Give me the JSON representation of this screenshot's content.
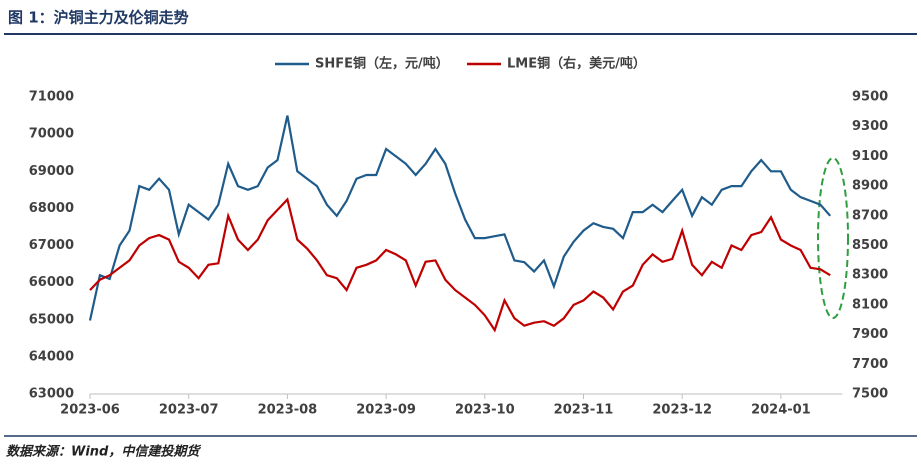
{
  "chart_data": {
    "type": "line",
    "title": "图 1：沪铜主力及伦铜走势",
    "source": "数据来源：Wind，中信建投期货",
    "categories": [
      "2023-06",
      null,
      null,
      null,
      null,
      null,
      null,
      null,
      null,
      null,
      "2023-07",
      null,
      null,
      null,
      null,
      null,
      null,
      null,
      null,
      null,
      "2023-08",
      null,
      null,
      null,
      null,
      null,
      null,
      null,
      null,
      null,
      "2023-09",
      null,
      null,
      null,
      null,
      null,
      null,
      null,
      null,
      null,
      "2023-10",
      null,
      null,
      null,
      null,
      null,
      null,
      null,
      null,
      null,
      "2023-11",
      null,
      null,
      null,
      null,
      null,
      null,
      null,
      null,
      null,
      "2023-12",
      null,
      null,
      null,
      null,
      null,
      null,
      null,
      null,
      null,
      "2024-01",
      null,
      null,
      null,
      null,
      null
    ],
    "series": [
      {
        "name": "SHFE铜（左，元/吨）",
        "color": "#1f5c8b",
        "axis": "y",
        "values": [
          64980,
          66200,
          66100,
          67000,
          67400,
          68600,
          68500,
          68800,
          68500,
          67300,
          68100,
          67900,
          67700,
          68100,
          69200,
          68600,
          68500,
          68600,
          69100,
          69300,
          70500,
          69000,
          68800,
          68600,
          68100,
          67800,
          68200,
          68800,
          68900,
          68900,
          69600,
          69400,
          69200,
          68900,
          69200,
          69600,
          69200,
          68400,
          67700,
          67200,
          67200,
          67250,
          67300,
          66600,
          66550,
          66300,
          66600,
          65900,
          66700,
          67100,
          67400,
          67600,
          67500,
          67450,
          67200,
          67900,
          67900,
          68100,
          67900,
          68200,
          68500,
          67800,
          68300,
          68100,
          68500,
          68600,
          68600,
          69000,
          69300,
          69000,
          69000,
          68500,
          68300,
          68200,
          68100,
          67800
        ]
      },
      {
        "name": "LME铜（右，美元/吨）",
        "color": "#c00000",
        "axis": "y2",
        "values": [
          8200,
          8270,
          8300,
          8350,
          8400,
          8500,
          8550,
          8570,
          8540,
          8390,
          8350,
          8280,
          8370,
          8380,
          8700,
          8540,
          8470,
          8540,
          8670,
          8740,
          8810,
          8540,
          8480,
          8400,
          8300,
          8280,
          8200,
          8350,
          8370,
          8400,
          8470,
          8440,
          8400,
          8230,
          8390,
          8400,
          8270,
          8200,
          8150,
          8100,
          8030,
          7930,
          8130,
          8010,
          7960,
          7980,
          7990,
          7960,
          8010,
          8100,
          8130,
          8190,
          8150,
          8070,
          8190,
          8230,
          8370,
          8440,
          8390,
          8410,
          8600,
          8370,
          8300,
          8390,
          8350,
          8500,
          8470,
          8570,
          8590,
          8690,
          8540,
          8500,
          8470,
          8350,
          8340,
          8300
        ]
      }
    ],
    "ylim": [
      63000,
      71000
    ],
    "yticks": [
      63000,
      64000,
      65000,
      66000,
      67000,
      68000,
      69000,
      70000,
      71000
    ],
    "y2lim": [
      7500,
      9500
    ],
    "y2ticks": [
      7500,
      7700,
      7900,
      8100,
      8300,
      8500,
      8700,
      8900,
      9100,
      9300,
      9500
    ]
  }
}
